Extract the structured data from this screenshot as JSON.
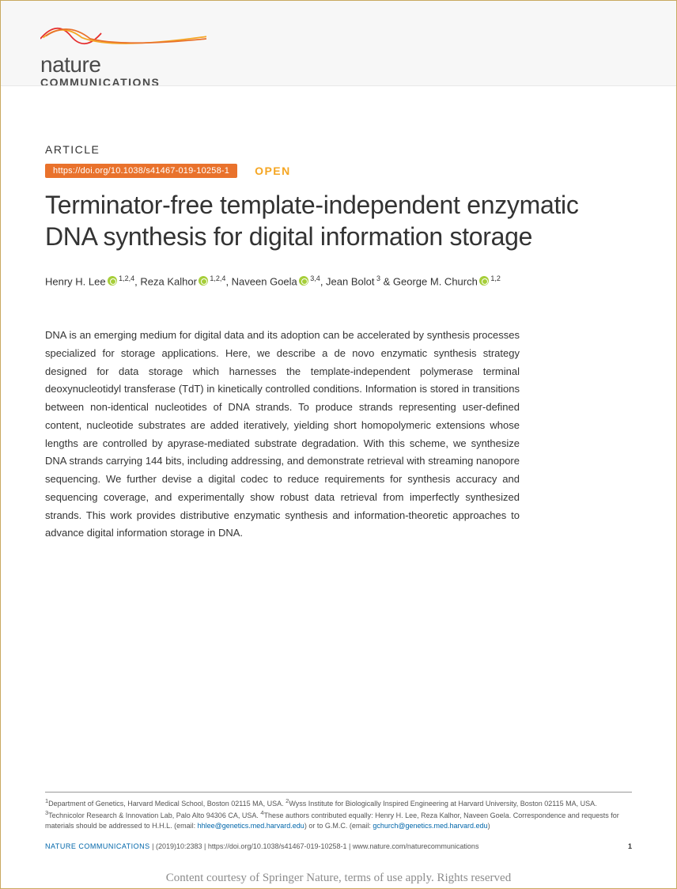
{
  "header": {
    "logo_word": "nature",
    "logo_sub": "COMMUNICATIONS",
    "curve_colors": [
      "#e52e2e",
      "#f5a623",
      "#e9722c"
    ]
  },
  "article": {
    "label": "ARTICLE",
    "doi": "https://doi.org/10.1038/s41467-019-10258-1",
    "open": "OPEN",
    "title": "Terminator-free template-independent enzymatic DNA synthesis for digital information storage"
  },
  "authors": [
    {
      "name": "Henry H. Lee",
      "orcid": true,
      "affil": "1,2,4"
    },
    {
      "name": "Reza Kalhor",
      "orcid": true,
      "affil": "1,2,4"
    },
    {
      "name": "Naveen Goela",
      "orcid": true,
      "affil": "3,4"
    },
    {
      "name": "Jean Bolot",
      "orcid": false,
      "affil": "3"
    },
    {
      "name": "George M. Church",
      "orcid": true,
      "affil": "1,2"
    }
  ],
  "abstract": "DNA is an emerging medium for digital data and its adoption can be accelerated by synthesis processes specialized for storage applications. Here, we describe a de novo enzymatic synthesis strategy designed for data storage which harnesses the template-independent polymerase terminal deoxynucleotidyl transferase (TdT) in kinetically controlled conditions. Information is stored in transitions between non-identical nucleotides of DNA strands. To produce strands representing user-defined content, nucleotide substrates are added iteratively, yielding short homopolymeric extensions whose lengths are controlled by apyrase-mediated substrate degradation. With this scheme, we synthesize DNA strands carrying 144 bits, including addressing, and demonstrate retrieval with streaming nanopore sequencing. We further devise a digital codec to reduce requirements for synthesis accuracy and sequencing coverage, and experimentally show robust data retrieval from imperfectly synthesized strands. This work provides distributive enzymatic synthesis and information-theoretic approaches to advance digital information storage in DNA.",
  "affiliations": {
    "text_1": "Department of Genetics, Harvard Medical School, Boston 02115 MA, USA. ",
    "text_2": "Wyss Institute for Biologically Inspired Engineering at Harvard University, Boston 02115 MA, USA. ",
    "text_3": "Technicolor Research & Innovation Lab, Palo Alto 94306 CA, USA. ",
    "text_4": "These authors contributed equally: Henry H. Lee, Reza Kalhor, Naveen Goela. Correspondence and requests for materials should be addressed to H.H.L. (email: ",
    "email_1": "hhlee@genetics.med.harvard.edu",
    "mid": ") or to G.M.C. (email: ",
    "email_2": "gchurch@genetics.med.harvard.edu",
    "end": ")"
  },
  "journal": {
    "name": "NATURE COMMUNICATIONS",
    "citation": " | (2019)10:2383 | https://doi.org/10.1038/s41467-019-10258-1 | www.nature.com/naturecommunications",
    "page": "1"
  },
  "courtesy": "Content courtesy of Springer Nature, terms of use apply. Rights reserved",
  "colors": {
    "doi_bg": "#e9722c",
    "open_color": "#f5a623",
    "orcid_bg": "#a6ce39",
    "link_color": "#0066aa"
  }
}
